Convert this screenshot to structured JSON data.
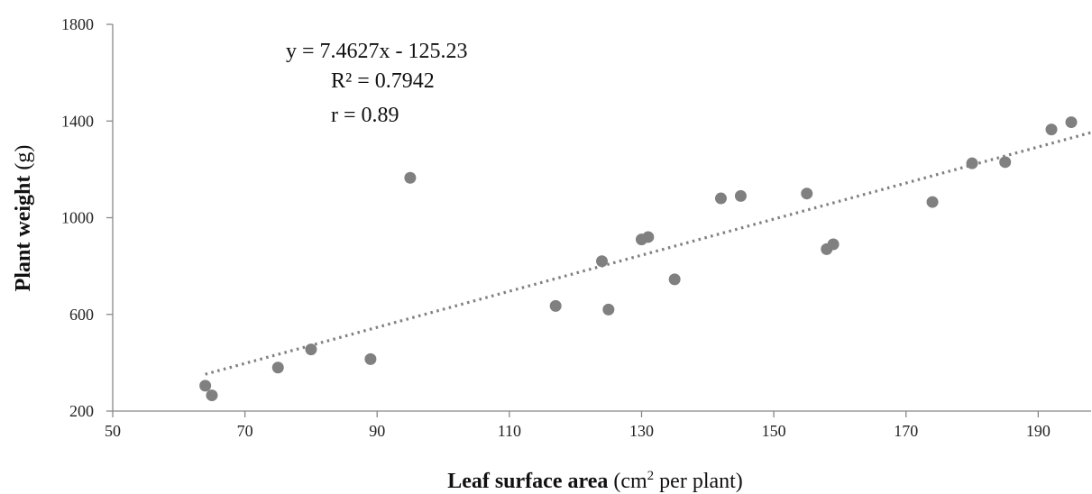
{
  "chart_data": {
    "type": "scatter",
    "title": "",
    "xlabel": {
      "bold": "Leaf surface area",
      "pre": " (cm",
      "sup": "2",
      "post": " per plant)"
    },
    "ylabel": {
      "bold": "Plant weight",
      "rest": " (g)"
    },
    "xlim": [
      50,
      198
    ],
    "ylim": [
      200,
      1800
    ],
    "x_ticks": [
      "50",
      "70",
      "90",
      "110",
      "130",
      "150",
      "170",
      "190"
    ],
    "y_ticks": [
      "200",
      "600",
      "1000",
      "1400",
      "1800"
    ],
    "points": [
      {
        "x": 64,
        "y": 305
      },
      {
        "x": 65,
        "y": 265
      },
      {
        "x": 75,
        "y": 380
      },
      {
        "x": 80,
        "y": 455
      },
      {
        "x": 89,
        "y": 415
      },
      {
        "x": 95,
        "y": 1165
      },
      {
        "x": 117,
        "y": 635
      },
      {
        "x": 124,
        "y": 820
      },
      {
        "x": 125,
        "y": 620
      },
      {
        "x": 130,
        "y": 910
      },
      {
        "x": 131,
        "y": 920
      },
      {
        "x": 135,
        "y": 745
      },
      {
        "x": 142,
        "y": 1080
      },
      {
        "x": 145,
        "y": 1090
      },
      {
        "x": 155,
        "y": 1100
      },
      {
        "x": 158,
        "y": 870
      },
      {
        "x": 159,
        "y": 890
      },
      {
        "x": 174,
        "y": 1065
      },
      {
        "x": 180,
        "y": 1225
      },
      {
        "x": 185,
        "y": 1230
      },
      {
        "x": 192,
        "y": 1365
      },
      {
        "x": 195,
        "y": 1395
      }
    ],
    "trendline": {
      "type": "linear",
      "slope": 7.4627,
      "intercept": -125.23,
      "x_range": [
        64,
        198
      ],
      "style": "dotted"
    },
    "annotations": {
      "equation": "y = 7.4627x - 125.23",
      "r_squared": "R² = 0.7942",
      "r": "r = 0.89"
    },
    "grid": false,
    "legend": "none",
    "colors": {
      "points": "#808080",
      "trendline": "#808080",
      "axis": "#888888"
    }
  }
}
